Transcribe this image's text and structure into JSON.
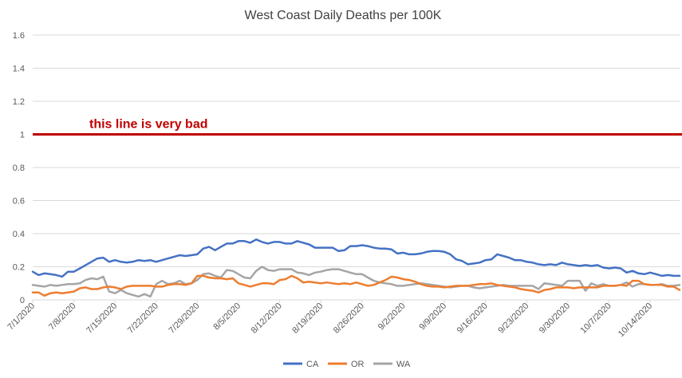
{
  "chart_data": {
    "type": "line",
    "title": "West Coast Daily Deaths per 100K",
    "xlabel": "",
    "ylabel": "",
    "ylim": [
      0,
      1.6
    ],
    "yticks": [
      "0",
      "0.2",
      "0.4",
      "0.6",
      "0.8",
      "1",
      "1.2",
      "1.4",
      "1.6"
    ],
    "x_tick_labels": [
      "7/1/2020",
      "7/8/2020",
      "7/15/2020",
      "7/22/2020",
      "7/29/2020",
      "8/5/2020",
      "8/12/2020",
      "8/19/2020",
      "8/26/2020",
      "9/2/2020",
      "9/9/2020",
      "9/16/2020",
      "9/23/2020",
      "9/30/2020",
      "10/7/2020",
      "10/14/2020"
    ],
    "x_start": "7/1/2020",
    "x_end": "10/17/2020",
    "grid": true,
    "legend_position": "bottom",
    "reference_line": {
      "value": 1,
      "label": "this line is very bad",
      "color": "#c00000"
    },
    "series": [
      {
        "name": "CA",
        "color": "#4472c4",
        "values": [
          0.17,
          0.15,
          0.16,
          0.155,
          0.15,
          0.14,
          0.17,
          0.17,
          0.19,
          0.21,
          0.23,
          0.25,
          0.255,
          0.23,
          0.24,
          0.23,
          0.225,
          0.23,
          0.24,
          0.235,
          0.24,
          0.23,
          0.24,
          0.25,
          0.26,
          0.27,
          0.265,
          0.27,
          0.275,
          0.31,
          0.32,
          0.3,
          0.32,
          0.34,
          0.34,
          0.355,
          0.355,
          0.345,
          0.365,
          0.35,
          0.34,
          0.35,
          0.35,
          0.34,
          0.34,
          0.355,
          0.345,
          0.335,
          0.315,
          0.315,
          0.315,
          0.315,
          0.295,
          0.3,
          0.325,
          0.325,
          0.33,
          0.325,
          0.315,
          0.31,
          0.31,
          0.305,
          0.28,
          0.285,
          0.275,
          0.275,
          0.28,
          0.29,
          0.295,
          0.295,
          0.29,
          0.275,
          0.245,
          0.235,
          0.215,
          0.22,
          0.225,
          0.24,
          0.245,
          0.275,
          0.265,
          0.255,
          0.24,
          0.24,
          0.23,
          0.225,
          0.215,
          0.21,
          0.215,
          0.21,
          0.225,
          0.215,
          0.21,
          0.205,
          0.21,
          0.205,
          0.21,
          0.195,
          0.19,
          0.195,
          0.19,
          0.165,
          0.175,
          0.16,
          0.155,
          0.165,
          0.155,
          0.145,
          0.15,
          0.145,
          0.145
        ]
      },
      {
        "name": "OR",
        "color": "#ed7d31",
        "values": [
          0.045,
          0.045,
          0.025,
          0.04,
          0.045,
          0.04,
          0.045,
          0.05,
          0.07,
          0.075,
          0.065,
          0.065,
          0.075,
          0.08,
          0.075,
          0.065,
          0.08,
          0.085,
          0.085,
          0.085,
          0.085,
          0.08,
          0.08,
          0.09,
          0.095,
          0.095,
          0.09,
          0.1,
          0.145,
          0.145,
          0.135,
          0.13,
          0.13,
          0.125,
          0.13,
          0.1,
          0.09,
          0.08,
          0.09,
          0.1,
          0.1,
          0.095,
          0.12,
          0.125,
          0.145,
          0.13,
          0.105,
          0.11,
          0.105,
          0.1,
          0.105,
          0.1,
          0.095,
          0.1,
          0.095,
          0.105,
          0.095,
          0.085,
          0.09,
          0.105,
          0.12,
          0.14,
          0.135,
          0.125,
          0.12,
          0.11,
          0.095,
          0.085,
          0.08,
          0.08,
          0.075,
          0.08,
          0.085,
          0.085,
          0.085,
          0.09,
          0.095,
          0.095,
          0.1,
          0.09,
          0.085,
          0.08,
          0.075,
          0.065,
          0.06,
          0.055,
          0.045,
          0.06,
          0.065,
          0.075,
          0.075,
          0.075,
          0.07,
          0.075,
          0.075,
          0.075,
          0.075,
          0.085,
          0.085,
          0.085,
          0.09,
          0.085,
          0.115,
          0.115,
          0.095,
          0.09,
          0.09,
          0.09,
          0.08,
          0.08,
          0.06
        ]
      },
      {
        "name": "WA",
        "color": "#a5a5a5",
        "values": [
          0.09,
          0.085,
          0.08,
          0.09,
          0.085,
          0.09,
          0.095,
          0.095,
          0.1,
          0.12,
          0.13,
          0.125,
          0.14,
          0.05,
          0.04,
          0.06,
          0.04,
          0.03,
          0.02,
          0.035,
          0.02,
          0.095,
          0.115,
          0.095,
          0.1,
          0.115,
          0.095,
          0.1,
          0.12,
          0.155,
          0.16,
          0.145,
          0.135,
          0.18,
          0.175,
          0.155,
          0.135,
          0.13,
          0.175,
          0.2,
          0.18,
          0.175,
          0.185,
          0.185,
          0.185,
          0.165,
          0.16,
          0.15,
          0.165,
          0.17,
          0.18,
          0.185,
          0.185,
          0.175,
          0.165,
          0.155,
          0.155,
          0.135,
          0.115,
          0.105,
          0.1,
          0.095,
          0.085,
          0.085,
          0.09,
          0.095,
          0.1,
          0.095,
          0.09,
          0.085,
          0.08,
          0.075,
          0.08,
          0.085,
          0.085,
          0.075,
          0.07,
          0.075,
          0.08,
          0.085,
          0.09,
          0.085,
          0.085,
          0.085,
          0.085,
          0.085,
          0.065,
          0.1,
          0.095,
          0.09,
          0.085,
          0.115,
          0.115,
          0.115,
          0.055,
          0.1,
          0.085,
          0.095,
          0.085,
          0.085,
          0.09,
          0.105,
          0.08,
          0.095,
          0.095,
          0.09,
          0.09,
          0.095,
          0.085,
          0.085,
          0.09
        ]
      }
    ]
  }
}
